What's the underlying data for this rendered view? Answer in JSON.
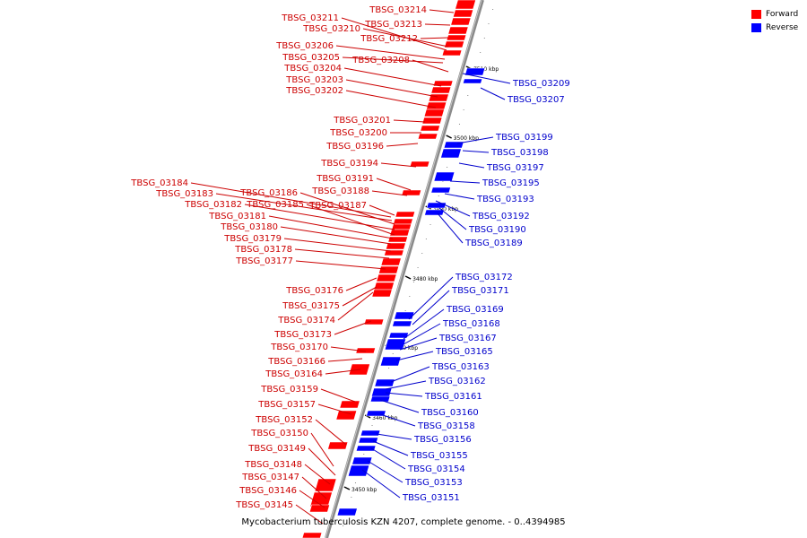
{
  "legend": {
    "forward_label": "Forward",
    "reverse_label": "Reverse",
    "forward_color": "#ff0000",
    "reverse_color": "#0000ff"
  },
  "caption": "Mycobacterium tuberculosis KZN 4207, complete genome. - 0..4394985",
  "colors": {
    "forward": "#ff0000",
    "reverse": "#0000ff",
    "label_forward": "#cc0000",
    "label_reverse": "#0000cc"
  },
  "axis": {
    "ticks": [
      "3510 kbp",
      "3500 kbp",
      "3490 kbp",
      "3480 kbp",
      "3470 kbp",
      "3460 kbp",
      "3450 kbp"
    ]
  },
  "forward_genes": [
    "TBSG_03214",
    "TBSG_03213",
    "TBSG_03212",
    "TBSG_03211",
    "TBSG_03210",
    "TBSG_03206",
    "TBSG_03205",
    "TBSG_03204",
    "TBSG_03208",
    "TBSG_03203",
    "TBSG_03202",
    "TBSG_03201",
    "TBSG_03200",
    "TBSG_03196",
    "TBSG_03194",
    "TBSG_03191",
    "TBSG_03188",
    "TBSG_03184",
    "TBSG_03183",
    "TBSG_03186",
    "TBSG_03182",
    "TBSG_03185",
    "TBSG_03187",
    "TBSG_03181",
    "TBSG_03180",
    "TBSG_03179",
    "TBSG_03178",
    "TBSG_03177",
    "TBSG_03176",
    "TBSG_03175",
    "TBSG_03174",
    "TBSG_03173",
    "TBSG_03170",
    "TBSG_03166",
    "TBSG_03164",
    "TBSG_03159",
    "TBSG_03157",
    "TBSG_03152",
    "TBSG_03150",
    "TBSG_03149",
    "TBSG_03148",
    "TBSG_03147",
    "TBSG_03146",
    "TBSG_03145"
  ],
  "reverse_genes": [
    "TBSG_03209",
    "TBSG_03207",
    "TBSG_03199",
    "TBSG_03198",
    "TBSG_03197",
    "TBSG_03195",
    "TBSG_03193",
    "TBSG_03192",
    "TBSG_03190",
    "TBSG_03189",
    "TBSG_03172",
    "TBSG_03171",
    "TBSG_03169",
    "TBSG_03168",
    "TBSG_03167",
    "TBSG_03165",
    "TBSG_03163",
    "TBSG_03162",
    "TBSG_03161",
    "TBSG_03160",
    "TBSG_03158",
    "TBSG_03156",
    "TBSG_03155",
    "TBSG_03154",
    "TBSG_03153",
    "TBSG_03151"
  ]
}
